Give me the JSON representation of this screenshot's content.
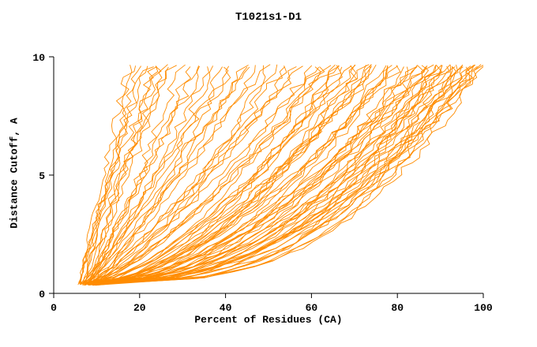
{
  "page": {
    "background": "#ffffff"
  },
  "chart_data": {
    "type": "line",
    "title": "T1021s1-D1",
    "xlabel": "Percent of Residues (CA)",
    "ylabel": "Distance Cutoff, A",
    "xlim": [
      0,
      100
    ],
    "ylim": [
      0,
      10
    ],
    "x_ticks": [
      0,
      20,
      40,
      60,
      80,
      100
    ],
    "y_ticks": [
      0,
      5,
      10
    ],
    "grid": false,
    "legend": "none",
    "line_color": "#ff8c00",
    "axis_color": "#000000",
    "curve_y_start": 0.4,
    "curve_y_end": 9.62,
    "series_model": "x(y) = xs + (xe - xs) * ((y - ys)/(ye - ys))^a ; each series = [xs, xe, a]",
    "series": [
      [
        6,
        18,
        1.1
      ],
      [
        7,
        20,
        1.0
      ],
      [
        6,
        22,
        1.15
      ],
      [
        8,
        24,
        0.95
      ],
      [
        7,
        26,
        1.05
      ],
      [
        6,
        28,
        1.2
      ],
      [
        8,
        30,
        0.9
      ],
      [
        7,
        19,
        1.0
      ],
      [
        6,
        21,
        1.1
      ],
      [
        8,
        27,
        1.0
      ],
      [
        7,
        23,
        0.85
      ],
      [
        6,
        25,
        1.25
      ],
      [
        7,
        32,
        0.9
      ],
      [
        8,
        34,
        1.0
      ],
      [
        6,
        36,
        0.8
      ],
      [
        9,
        38,
        0.95
      ],
      [
        7,
        40,
        0.85
      ],
      [
        8,
        42,
        1.05
      ],
      [
        6,
        44,
        0.75
      ],
      [
        9,
        46,
        0.9
      ],
      [
        7,
        48,
        0.8
      ],
      [
        8,
        50,
        1.0
      ],
      [
        6,
        52,
        0.7
      ],
      [
        9,
        54,
        0.85
      ],
      [
        7,
        56,
        0.75
      ],
      [
        8,
        58,
        0.9
      ],
      [
        6,
        60,
        0.65
      ],
      [
        9,
        35,
        1.1
      ],
      [
        7,
        45,
        0.95
      ],
      [
        8,
        55,
        0.7
      ],
      [
        6,
        50,
        0.6
      ],
      [
        9,
        41,
        0.8
      ],
      [
        8,
        62,
        0.6
      ],
      [
        7,
        64,
        0.7
      ],
      [
        9,
        66,
        0.55
      ],
      [
        8,
        68,
        0.65
      ],
      [
        7,
        70,
        0.5
      ],
      [
        9,
        72,
        0.6
      ],
      [
        8,
        74,
        0.55
      ],
      [
        7,
        76,
        0.65
      ],
      [
        9,
        78,
        0.5
      ],
      [
        8,
        80,
        0.6
      ],
      [
        7,
        82,
        0.45
      ],
      [
        9,
        84,
        0.55
      ],
      [
        8,
        63,
        0.7
      ],
      [
        7,
        67,
        0.6
      ],
      [
        9,
        71,
        0.5
      ],
      [
        8,
        75,
        0.6
      ],
      [
        7,
        79,
        0.55
      ],
      [
        9,
        83,
        0.45
      ],
      [
        8,
        65,
        0.75
      ],
      [
        7,
        69,
        0.65
      ],
      [
        9,
        73,
        0.55
      ],
      [
        8,
        77,
        0.5
      ],
      [
        7,
        81,
        0.6
      ],
      [
        9,
        85,
        0.4
      ],
      [
        8,
        61,
        0.8
      ],
      [
        7,
        66,
        0.55
      ],
      [
        9,
        70,
        0.65
      ],
      [
        8,
        78,
        0.45
      ],
      [
        7,
        84,
        0.5
      ],
      [
        9,
        74,
        0.6
      ],
      [
        8,
        86,
        0.5
      ],
      [
        9,
        88,
        0.45
      ],
      [
        10,
        90,
        0.4
      ],
      [
        8,
        92,
        0.5
      ],
      [
        9,
        94,
        0.35
      ],
      [
        10,
        96,
        0.45
      ],
      [
        8,
        98,
        0.4
      ],
      [
        9,
        100,
        0.35
      ],
      [
        10,
        87,
        0.5
      ],
      [
        8,
        89,
        0.45
      ],
      [
        9,
        91,
        0.4
      ],
      [
        10,
        93,
        0.5
      ],
      [
        8,
        95,
        0.35
      ],
      [
        9,
        97,
        0.45
      ],
      [
        10,
        99,
        0.4
      ],
      [
        8,
        88,
        0.55
      ],
      [
        9,
        90,
        0.5
      ],
      [
        10,
        92,
        0.35
      ],
      [
        8,
        94,
        0.45
      ],
      [
        9,
        96,
        0.4
      ],
      [
        10,
        98,
        0.35
      ],
      [
        8,
        100,
        0.45
      ],
      [
        9,
        87,
        0.55
      ],
      [
        10,
        91,
        0.45
      ],
      [
        8,
        93,
        0.4
      ],
      [
        9,
        95,
        0.5
      ],
      [
        10,
        97,
        0.35
      ],
      [
        8,
        99,
        0.45
      ],
      [
        9,
        89,
        0.4
      ],
      [
        10,
        86,
        0.6
      ]
    ]
  }
}
